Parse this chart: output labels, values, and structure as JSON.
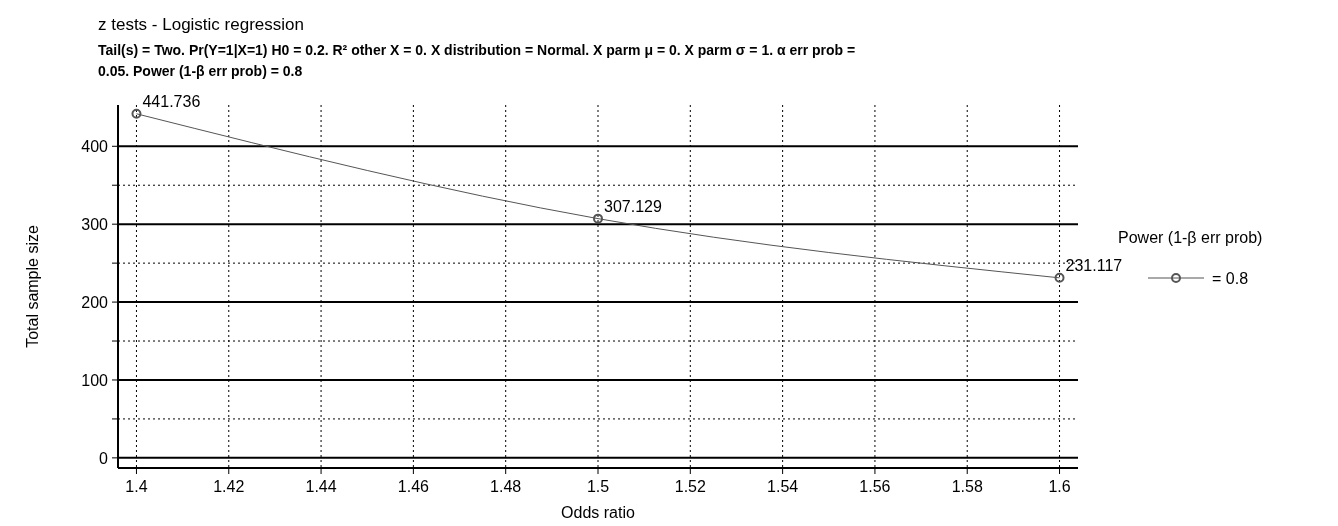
{
  "chart_data": {
    "type": "line",
    "title": "z tests - Logistic regression",
    "subtitle": "Tail(s) = Two. Pr(Y=1|X=1) H0 = 0.2. R² other X = 0. X distribution = Normal. X parm μ = 0. X parm σ = 1. α err prob = 0.05. Power (1-β err prob) = 0.8",
    "xlabel": "Odds ratio",
    "ylabel": "Total sample size",
    "legend_title": "Power (1-β err prob)",
    "x": [
      1.4,
      1.5,
      1.6
    ],
    "series": [
      {
        "name": "= 0.8",
        "color": "#555555",
        "values": [
          441.736,
          307.129,
          231.117
        ]
      }
    ],
    "xlim": [
      1.396,
      1.604
    ],
    "ylim": [
      -13,
      453
    ],
    "xticks": [
      1.4,
      1.42,
      1.44,
      1.46,
      1.48,
      1.5,
      1.52,
      1.54,
      1.56,
      1.58,
      1.6
    ],
    "yticks": [
      0,
      {
        "value": 50,
        "label": null
      },
      100,
      {
        "value": 150,
        "label": null
      },
      200,
      {
        "value": 250,
        "label": null
      },
      300,
      {
        "value": 350,
        "label": null
      },
      400
    ],
    "grid": true,
    "legend": "right",
    "marker": "circle",
    "line_style": "solid",
    "data_labels": true
  }
}
